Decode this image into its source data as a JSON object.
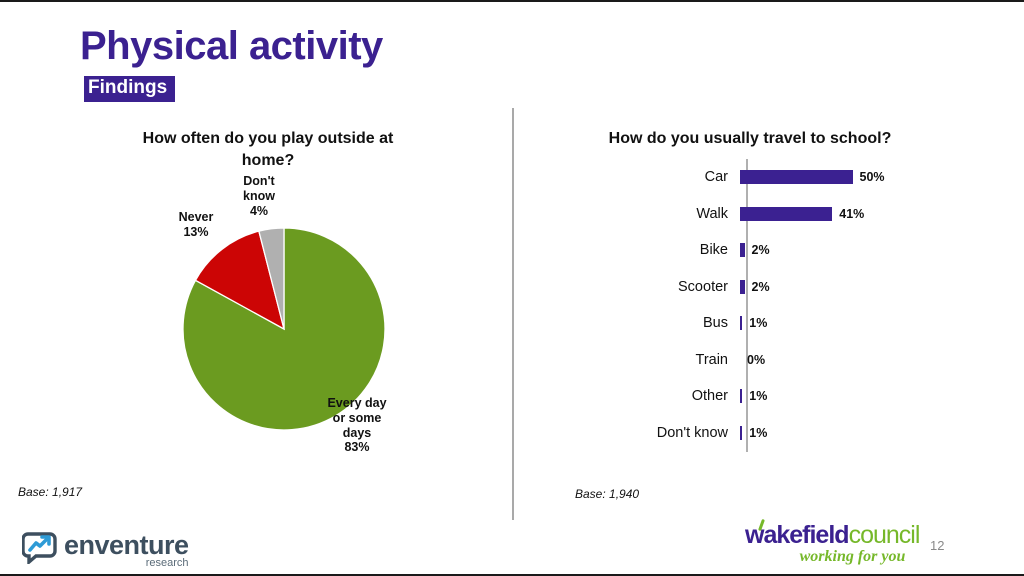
{
  "slide": {
    "title": "Physical activity",
    "subtitle_badge": "Findings",
    "page_number": "12"
  },
  "charts": {
    "pie": {
      "title": "How often do you play outside at home?",
      "base_note": "Base: 1,917",
      "chart_data": {
        "type": "pie",
        "categories": [
          "Every day or some days",
          "Never",
          "Don't know"
        ],
        "values": [
          83,
          13,
          4
        ],
        "colors": [
          "#6B9B20",
          "#CC0505",
          "#B0B0B0"
        ],
        "labels": [
          "Every day\nor some\ndays\n83%",
          "Never\n13%",
          "Don't\nknow\n4%"
        ],
        "start_angle_deg": 0,
        "direction": "clockwise",
        "legend": "none"
      }
    },
    "bar": {
      "title": "How do you usually travel to school?",
      "base_note": "Base: 1,940",
      "chart_data": {
        "type": "bar",
        "orientation": "horizontal",
        "categories": [
          "Car",
          "Walk",
          "Bike",
          "Scooter",
          "Bus",
          "Train",
          "Other",
          "Don't know"
        ],
        "values": [
          50,
          41,
          2,
          2,
          1,
          0,
          1,
          1
        ],
        "value_suffix": "%",
        "bar_color": "#3B2191",
        "xlim": [
          0,
          55
        ],
        "grid": "off",
        "legend": "none"
      }
    }
  },
  "footer": {
    "enventure": {
      "name": "enventure",
      "sub": "research"
    },
    "wakefield": {
      "name_bold": "wakefield",
      "name_light": "council",
      "tagline": "working for you"
    }
  },
  "colors": {
    "accent_purple": "#3B2190",
    "pie_green": "#6B9B20",
    "pie_red": "#CC0505",
    "pie_gray": "#B0B0B0",
    "enventure_slate": "#3d4f5f",
    "enventure_blue": "#2e9bd6",
    "wakefield_green": "#76B82A"
  }
}
